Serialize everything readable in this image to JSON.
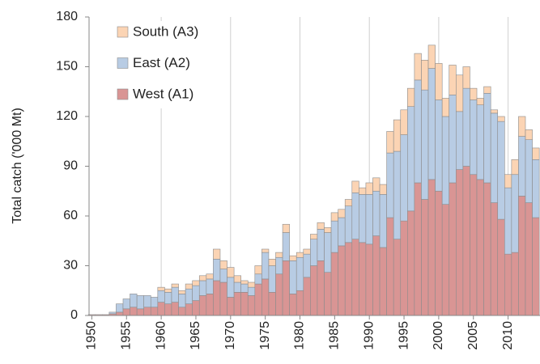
{
  "chart_data": {
    "type": "stacked_bar",
    "y_label": "Total catch ('000 Mt)",
    "x": [
      1950,
      1951,
      1952,
      1953,
      1954,
      1955,
      1956,
      1957,
      1958,
      1959,
      1960,
      1961,
      1962,
      1963,
      1964,
      1965,
      1966,
      1967,
      1968,
      1969,
      1970,
      1971,
      1972,
      1973,
      1974,
      1975,
      1976,
      1977,
      1978,
      1979,
      1980,
      1981,
      1982,
      1983,
      1984,
      1985,
      1986,
      1987,
      1988,
      1989,
      1990,
      1991,
      1992,
      1993,
      1994,
      1995,
      1996,
      1997,
      1998,
      1999,
      2000,
      2001,
      2002,
      2003,
      2004,
      2005,
      2006,
      2007,
      2008,
      2009,
      2010,
      2011,
      2012,
      2013,
      2014
    ],
    "series": [
      {
        "name": "West (A1)",
        "color": "#d99594",
        "values": [
          0.5,
          0.5,
          0.5,
          1,
          2,
          4,
          5,
          4,
          5,
          5,
          8,
          7,
          8,
          5,
          7,
          9,
          12,
          13,
          21,
          20,
          11,
          14,
          14,
          12,
          19,
          22,
          14,
          25,
          33,
          13,
          15,
          23,
          30,
          33,
          26,
          38,
          42,
          44,
          46,
          44,
          43,
          48,
          41,
          59,
          46,
          57,
          63,
          80,
          70,
          82,
          75,
          67,
          80,
          88,
          90,
          85,
          82,
          80,
          68,
          58,
          37,
          38,
          72,
          68,
          59
        ]
      },
      {
        "name": "East (A2)",
        "color": "#b8cce4",
        "values": [
          0,
          0,
          0,
          1,
          5,
          6,
          8,
          8,
          7,
          6,
          7,
          7,
          9,
          8,
          9,
          9,
          9,
          9,
          13,
          8,
          12,
          6,
          5,
          5,
          6,
          16,
          16,
          10,
          17,
          20,
          20,
          14,
          16,
          19,
          24,
          19,
          17,
          22,
          28,
          29,
          30,
          27,
          32,
          39,
          53,
          52,
          63,
          62,
          66,
          67,
          55,
          53,
          53,
          35,
          47,
          45,
          45,
          54,
          54,
          59,
          40,
          47,
          36,
          38,
          35
        ]
      },
      {
        "name": "South (A3)",
        "color": "#fbd4b4",
        "values": [
          0,
          0,
          0,
          0,
          0,
          0,
          0,
          0,
          0,
          0,
          2,
          2,
          2,
          2,
          3,
          3,
          3,
          3,
          6,
          5,
          6,
          4,
          2,
          3,
          5,
          2,
          4,
          3,
          5,
          3,
          3,
          3,
          3,
          4,
          3,
          5,
          5,
          4,
          7,
          4,
          7,
          8,
          6,
          13,
          19,
          15,
          11,
          16,
          18,
          14,
          22,
          11,
          18,
          22,
          13,
          7,
          4,
          4,
          2,
          3,
          8,
          9,
          12,
          6,
          7
        ]
      }
    ],
    "xlim": [
      1949.6,
      2014.6
    ],
    "xticks": [
      1950,
      1955,
      1960,
      1965,
      1970,
      1975,
      1980,
      1985,
      1990,
      1995,
      2000,
      2005,
      2010
    ],
    "ylim": [
      0,
      180
    ],
    "yticks": [
      0,
      30,
      60,
      90,
      120,
      150,
      180
    ],
    "x_grid": [
      1960,
      1970,
      1980,
      1990,
      2000,
      2010
    ],
    "legend": "upper left"
  }
}
